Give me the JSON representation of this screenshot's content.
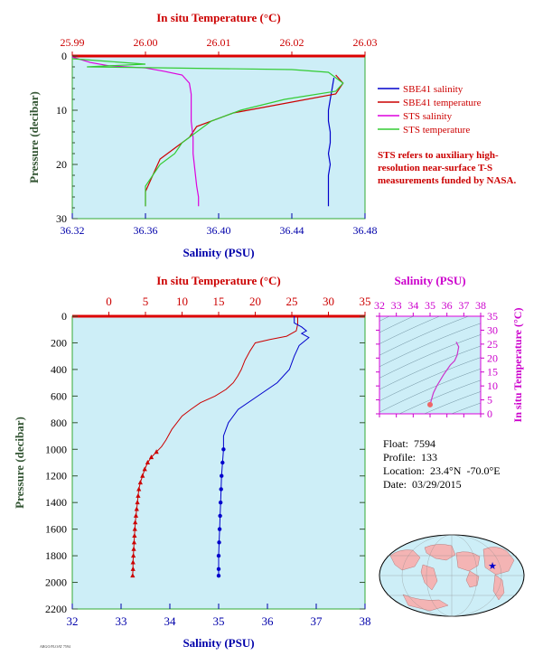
{
  "chart_data": [
    {
      "type": "line",
      "name": "top-profile",
      "top_axis_label": "In situ Temperature (°C)",
      "bottom_axis_label": "Salinity (PSU)",
      "ylabel": "Pressure (decibar)",
      "temperature_range": [
        25.99,
        26.03
      ],
      "temperature_ticks": [
        "25.99",
        "26.00",
        "26.01",
        "26.02",
        "26.03"
      ],
      "salinity_range": [
        36.32,
        36.48
      ],
      "salinity_ticks": [
        "36.32",
        "36.36",
        "36.40",
        "36.44",
        "36.48"
      ],
      "pressure_range": [
        0,
        30
      ],
      "pressure_ticks": [
        "0",
        "10",
        "20",
        "30"
      ],
      "legend": [
        {
          "label": "SBE41 salinity",
          "color": "#0000cc"
        },
        {
          "label": "SBE41 temperature",
          "color": "#cc0000"
        },
        {
          "label": "STS salinity",
          "color": "#dd00dd"
        },
        {
          "label": "STS temperature",
          "color": "#33cc33"
        }
      ],
      "note": "STS refers to auxiliary high-resolution near-surface T-S measurements funded by NASA.",
      "series": [
        {
          "name": "SBE41 salinity",
          "axis": "salinity",
          "color": "#0000cc",
          "points": [
            [
              36.463,
              4
            ],
            [
              36.462,
              6
            ],
            [
              36.461,
              8
            ],
            [
              36.46,
              10
            ],
            [
              36.46,
              12
            ],
            [
              36.461,
              14
            ],
            [
              36.461,
              16
            ],
            [
              36.46,
              18
            ],
            [
              36.461,
              20
            ],
            [
              36.46,
              22
            ],
            [
              36.46,
              24
            ],
            [
              36.46,
              26
            ],
            [
              36.46,
              27.7
            ]
          ]
        },
        {
          "name": "SBE41 temperature",
          "axis": "temperature",
          "color": "#cc0000",
          "points": [
            [
              26.026,
              3.5
            ],
            [
              26.027,
              5
            ],
            [
              26.026,
              7
            ],
            [
              26.018,
              9
            ],
            [
              26.012,
              10.5
            ],
            [
              26.007,
              13
            ],
            [
              26.006,
              15
            ],
            [
              26.004,
              17
            ],
            [
              26.002,
              19
            ],
            [
              26.001,
              22
            ],
            [
              26.0,
              25
            ],
            [
              26.0,
              27.7
            ]
          ]
        },
        {
          "name": "STS salinity",
          "axis": "salinity",
          "color": "#dd00dd",
          "points": [
            [
              36.32,
              0.2
            ],
            [
              36.33,
              1.2
            ],
            [
              36.34,
              1.8
            ],
            [
              36.36,
              2.2
            ],
            [
              36.37,
              2.8
            ],
            [
              36.38,
              3.5
            ],
            [
              36.384,
              5
            ],
            [
              36.385,
              7
            ],
            [
              36.385,
              9
            ],
            [
              36.385,
              12
            ],
            [
              36.386,
              15
            ],
            [
              36.386,
              18
            ],
            [
              36.387,
              21
            ],
            [
              36.388,
              24
            ],
            [
              36.389,
              26
            ],
            [
              36.389,
              27.7
            ]
          ]
        },
        {
          "name": "STS temperature",
          "axis": "temperature",
          "color": "#33cc33",
          "points": [
            [
              25.99,
              0.5
            ],
            [
              25.995,
              1.0
            ],
            [
              26.0,
              1.5
            ],
            [
              25.992,
              2.0
            ],
            [
              26.02,
              2.5
            ],
            [
              26.025,
              3.0
            ],
            [
              26.026,
              4.0
            ],
            [
              26.027,
              5
            ],
            [
              26.026,
              6.5
            ],
            [
              26.019,
              8
            ],
            [
              26.013,
              10
            ],
            [
              26.009,
              12
            ],
            [
              26.007,
              14
            ],
            [
              26.005,
              16
            ],
            [
              26.004,
              18
            ],
            [
              26.002,
              20
            ],
            [
              26.001,
              22
            ],
            [
              26.0,
              24
            ],
            [
              26.0,
              26
            ],
            [
              26.0,
              27.7
            ]
          ]
        }
      ]
    },
    {
      "type": "line",
      "name": "deep-profile",
      "top_axis_label": "In situ Temperature (°C)",
      "bottom_axis_label": "Salinity (PSU)",
      "ylabel": "Pressure (decibar)",
      "temperature_range": [
        -5,
        35
      ],
      "temperature_ticks": [
        "0",
        "5",
        "10",
        "15",
        "20",
        "25",
        "30",
        "35"
      ],
      "salinity_range": [
        32,
        38
      ],
      "salinity_ticks": [
        "32",
        "33",
        "34",
        "35",
        "36",
        "37",
        "38"
      ],
      "pressure_range": [
        0,
        2200
      ],
      "pressure_ticks": [
        "0",
        "200",
        "400",
        "600",
        "800",
        "1000",
        "1200",
        "1400",
        "1600",
        "1800",
        "2000",
        "2200"
      ],
      "series": [
        {
          "name": "temperature",
          "axis": "temperature",
          "color": "#cc0000",
          "points": [
            [
              25.8,
              0
            ],
            [
              25.8,
              60
            ],
            [
              25.6,
              110
            ],
            [
              24.3,
              150
            ],
            [
              22,
              175
            ],
            [
              20,
              200
            ],
            [
              19.3,
              260
            ],
            [
              18.6,
              330
            ],
            [
              18.1,
              400
            ],
            [
              17.6,
              450
            ],
            [
              17.0,
              500
            ],
            [
              16.0,
              550
            ],
            [
              14.5,
              600
            ],
            [
              12.5,
              650
            ],
            [
              11.2,
              700
            ],
            [
              10.0,
              750
            ],
            [
              8.6,
              850
            ],
            [
              7.8,
              930
            ],
            [
              7.2,
              980
            ],
            [
              6.5,
              1020
            ],
            [
              5.8,
              1060
            ],
            [
              5.3,
              1100
            ],
            [
              4.9,
              1150
            ],
            [
              4.6,
              1200
            ],
            [
              4.3,
              1250
            ],
            [
              4.1,
              1300
            ],
            [
              4.0,
              1350
            ],
            [
              3.9,
              1400
            ],
            [
              3.8,
              1450
            ],
            [
              3.7,
              1500
            ],
            [
              3.6,
              1550
            ],
            [
              3.55,
              1600
            ],
            [
              3.5,
              1650
            ],
            [
              3.45,
              1700
            ],
            [
              3.4,
              1750
            ],
            [
              3.35,
              1800
            ],
            [
              3.3,
              1850
            ],
            [
              3.3,
              1900
            ],
            [
              3.25,
              1950
            ]
          ]
        },
        {
          "name": "salinity",
          "axis": "salinity",
          "color": "#0000cc",
          "points": [
            [
              36.55,
              0
            ],
            [
              36.55,
              50
            ],
            [
              36.7,
              80
            ],
            [
              36.8,
              110
            ],
            [
              36.7,
              130
            ],
            [
              36.85,
              160
            ],
            [
              36.75,
              190
            ],
            [
              36.65,
              220
            ],
            [
              36.6,
              260
            ],
            [
              36.55,
              300
            ],
            [
              36.45,
              400
            ],
            [
              36.2,
              500
            ],
            [
              35.8,
              600
            ],
            [
              35.4,
              700
            ],
            [
              35.2,
              800
            ],
            [
              35.1,
              900
            ],
            [
              35.1,
              960
            ],
            [
              35.1,
              1000
            ],
            [
              35.08,
              1100
            ],
            [
              35.06,
              1200
            ],
            [
              35.05,
              1300
            ],
            [
              35.04,
              1400
            ],
            [
              35.03,
              1500
            ],
            [
              35.02,
              1600
            ],
            [
              35.01,
              1700
            ],
            [
              35.0,
              1800
            ],
            [
              35.0,
              1900
            ],
            [
              35.0,
              1950
            ]
          ]
        }
      ]
    },
    {
      "type": "scatter",
      "name": "ts-diagram",
      "top_axis_label": "Salinity (PSU)",
      "right_axis_label": "In situ Temperature (°C)",
      "salinity_range": [
        32,
        38
      ],
      "salinity_ticks": [
        "32",
        "33",
        "34",
        "35",
        "36",
        "37",
        "38"
      ],
      "temperature_range": [
        0,
        35
      ],
      "temperature_ticks": [
        "0",
        "5",
        "10",
        "15",
        "20",
        "25",
        "30",
        "35"
      ],
      "series": [
        {
          "name": "T-S",
          "color": "#cc33cc",
          "points": [
            [
              35.0,
              3.3
            ],
            [
              35.02,
              3.6
            ],
            [
              35.05,
              4.3
            ],
            [
              35.1,
              5.5
            ],
            [
              35.2,
              7.5
            ],
            [
              35.4,
              10
            ],
            [
              35.8,
              14
            ],
            [
              36.2,
              17.5
            ],
            [
              36.45,
              19
            ],
            [
              36.6,
              21
            ],
            [
              36.7,
              24
            ],
            [
              36.55,
              25.8
            ]
          ]
        }
      ]
    }
  ],
  "float_info": {
    "float": "Float:  7594",
    "profile": "Profile:  133",
    "location": "Location:  23.4°N  -70.0°E",
    "date": "Date:  03/29/2015"
  },
  "footer_text": "ARGO/FLOAT 7594"
}
